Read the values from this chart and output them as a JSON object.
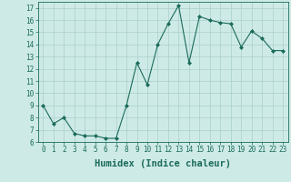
{
  "x": [
    0,
    1,
    2,
    3,
    4,
    5,
    6,
    7,
    8,
    9,
    10,
    11,
    12,
    13,
    14,
    15,
    16,
    17,
    18,
    19,
    20,
    21,
    22,
    23
  ],
  "y": [
    9,
    7.5,
    8,
    6.7,
    6.5,
    6.5,
    6.3,
    6.3,
    9,
    12.5,
    10.7,
    14,
    15.7,
    17.2,
    12.5,
    16.3,
    16.0,
    15.8,
    15.7,
    13.8,
    15.1,
    14.5,
    13.5,
    13.5
  ],
  "line_color": "#1a6b5a",
  "marker": "D",
  "marker_size": 2,
  "bg_color": "#ceeae7",
  "grid_color": "#aed4d0",
  "xlabel": "Humidex (Indice chaleur)",
  "ylim": [
    6,
    17.5
  ],
  "xlim": [
    -0.5,
    23.5
  ],
  "yticks": [
    6,
    7,
    8,
    9,
    10,
    11,
    12,
    13,
    14,
    15,
    16,
    17
  ],
  "xticks": [
    0,
    1,
    2,
    3,
    4,
    5,
    6,
    7,
    8,
    9,
    10,
    11,
    12,
    13,
    14,
    15,
    16,
    17,
    18,
    19,
    20,
    21,
    22,
    23
  ],
  "tick_fontsize": 5.5,
  "xlabel_fontsize": 7.5,
  "label_color": "#1a6b5a",
  "spine_color": "#1a6b5a"
}
